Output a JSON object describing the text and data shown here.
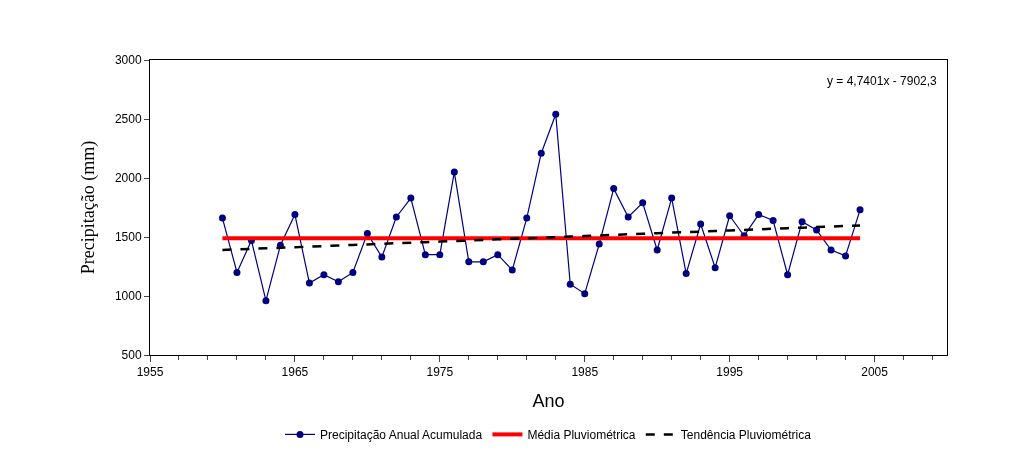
{
  "chart_data": {
    "type": "line",
    "xlabel": "Ano",
    "ylabel": "Precipitação (mm)",
    "x": [
      1960,
      1961,
      1962,
      1963,
      1964,
      1965,
      1966,
      1967,
      1968,
      1969,
      1970,
      1971,
      1972,
      1973,
      1974,
      1975,
      1976,
      1977,
      1978,
      1979,
      1980,
      1981,
      1982,
      1983,
      1984,
      1985,
      1986,
      1987,
      1988,
      1989,
      1990,
      1991,
      1992,
      1993,
      1994,
      1995,
      1996,
      1997,
      1998,
      1999,
      2000,
      2001,
      2002,
      2003,
      2004
    ],
    "series": [
      {
        "name": "Precipitação Anual Acumulada",
        "color": "#000080",
        "marker": "circle",
        "line_style": "solid",
        "values": [
          1660,
          1200,
          1470,
          960,
          1430,
          1690,
          1110,
          1180,
          1120,
          1200,
          1530,
          1330,
          1670,
          1830,
          1350,
          1350,
          2050,
          1290,
          1290,
          1350,
          1220,
          1660,
          2210,
          2540,
          1100,
          1020,
          1440,
          1910,
          1670,
          1790,
          1390,
          1830,
          1190,
          1610,
          1240,
          1680,
          1510,
          1690,
          1640,
          1180,
          1630,
          1560,
          1390,
          1340,
          1730
        ]
      },
      {
        "name": "Média Pluviométrica",
        "color": "#ff0000",
        "marker": "none",
        "line_style": "solid",
        "values": [
          1490,
          1490,
          1490,
          1490,
          1490,
          1490,
          1490,
          1490,
          1490,
          1490,
          1490,
          1490,
          1490,
          1490,
          1490,
          1490,
          1490,
          1490,
          1490,
          1490,
          1490,
          1490,
          1490,
          1490,
          1490,
          1490,
          1490,
          1490,
          1490,
          1490,
          1490,
          1490,
          1490,
          1490,
          1490,
          1490,
          1490,
          1490,
          1490,
          1490,
          1490,
          1490,
          1490,
          1490,
          1490
        ]
      },
      {
        "name": "Tendência Pluviométrica",
        "color": "#000000",
        "marker": "none",
        "line_style": "dashed",
        "values": [
          1390,
          1395,
          1400,
          1404,
          1409,
          1414,
          1418,
          1423,
          1428,
          1433,
          1437,
          1442,
          1447,
          1452,
          1456,
          1461,
          1466,
          1470,
          1475,
          1480,
          1485,
          1489,
          1494,
          1499,
          1504,
          1508,
          1513,
          1518,
          1523,
          1527,
          1532,
          1537,
          1541,
          1546,
          1551,
          1556,
          1560,
          1565,
          1570,
          1575,
          1579,
          1584,
          1589,
          1594,
          1598
        ]
      }
    ],
    "xlim": [
      1955,
      2010
    ],
    "xticks": [
      1955,
      1965,
      1975,
      1985,
      1995,
      2005
    ],
    "ylim": [
      500,
      3000
    ],
    "yticks": [
      500,
      1000,
      1500,
      2000,
      2500,
      3000
    ],
    "annotations": [
      "y = 4,7401x - 7902,3"
    ],
    "grid": false,
    "legend": "bottom"
  }
}
